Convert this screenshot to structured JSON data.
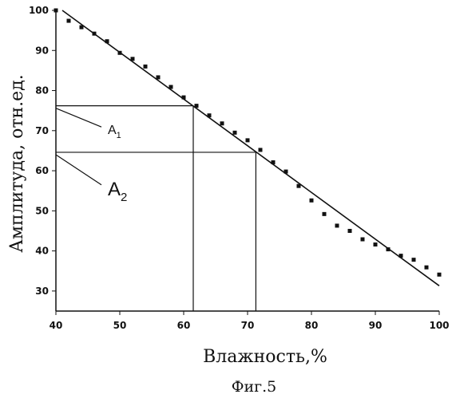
{
  "chart_data": {
    "type": "scatter",
    "caption": "Фиг.5",
    "xlabel": "Влажность,%",
    "ylabel": "Амплитуда, отн.ед.",
    "xlim": [
      40,
      100
    ],
    "ylim": [
      25,
      100
    ],
    "xticks": [
      40,
      50,
      60,
      70,
      80,
      90,
      100
    ],
    "yticks": [
      30,
      40,
      50,
      60,
      70,
      80,
      90,
      100
    ],
    "grid": false,
    "series": [
      {
        "kind": "points",
        "marker": "square",
        "points": [
          [
            40,
            100
          ],
          [
            42,
            97.4
          ],
          [
            44,
            95.8
          ],
          [
            46,
            94.2
          ],
          [
            48,
            92.3
          ],
          [
            50,
            89.4
          ],
          [
            52,
            87.9
          ],
          [
            54,
            86.0
          ],
          [
            56,
            83.3
          ],
          [
            58,
            80.9
          ],
          [
            60,
            78.3
          ],
          [
            62,
            76.2
          ],
          [
            64,
            73.8
          ],
          [
            66,
            71.8
          ],
          [
            68,
            69.5
          ],
          [
            70,
            67.6
          ],
          [
            72,
            65.2
          ],
          [
            74,
            62.1
          ],
          [
            76,
            59.8
          ],
          [
            78,
            56.2
          ],
          [
            80,
            52.6
          ],
          [
            82,
            49.2
          ],
          [
            84,
            46.3
          ],
          [
            86,
            45.0
          ],
          [
            88,
            42.9
          ],
          [
            90,
            41.6
          ],
          [
            92,
            40.4
          ],
          [
            94,
            38.8
          ],
          [
            96,
            37.8
          ],
          [
            98,
            35.9
          ],
          [
            100,
            34.1
          ]
        ]
      },
      {
        "kind": "line",
        "points": [
          [
            41,
            100
          ],
          [
            100,
            31.3
          ]
        ]
      }
    ],
    "annotations": [
      {
        "label": "A",
        "sub": "1",
        "y": 76.2,
        "x": 61.5
      },
      {
        "label": "A",
        "sub": "2",
        "y": 64.6,
        "x": 71.3
      }
    ]
  }
}
